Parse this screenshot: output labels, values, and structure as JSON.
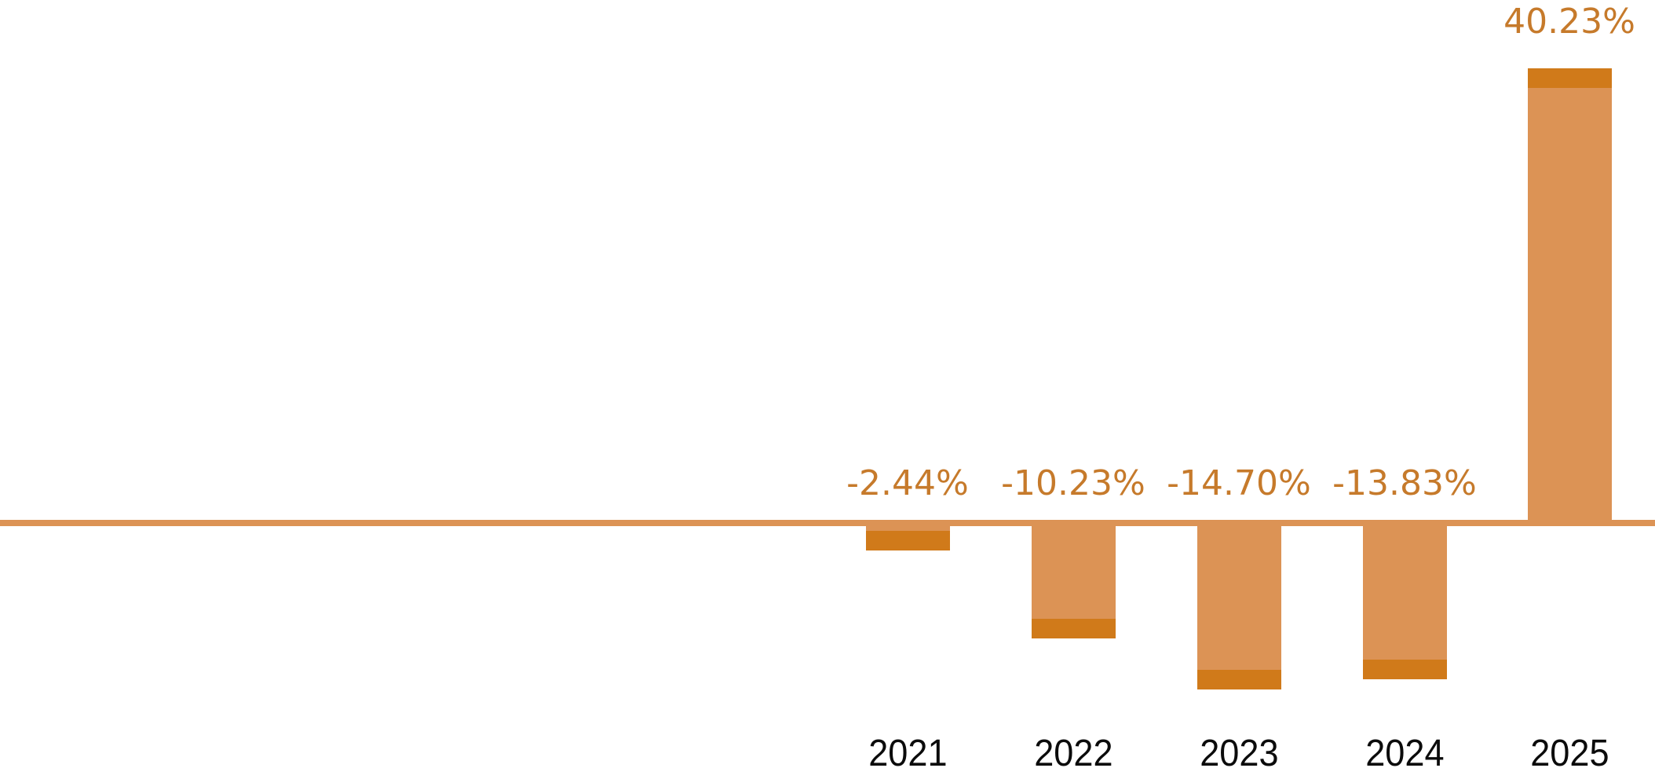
{
  "chart_data": {
    "type": "bar",
    "categories": [
      "2021",
      "2022",
      "2023",
      "2024",
      "2025"
    ],
    "values": [
      -2.44,
      -10.23,
      -14.7,
      -13.83,
      40.23
    ],
    "value_labels": [
      "-2.44%",
      "-10.23%",
      "-14.70%",
      "-13.83%",
      "40.23%"
    ],
    "series_name": "annual-change-percent",
    "title": "",
    "xlabel": "",
    "ylabel": "",
    "ylim": [
      -16,
      42
    ],
    "grid": false,
    "legend": false,
    "value_label_position": "outside-end",
    "baseline_value": 0,
    "baseline_full_width": true,
    "bars_aligned": "right-half-of-canvas",
    "colors": {
      "bar_fill": "#DC9355",
      "bar_cap": "#D07A1A",
      "baseline": "#DC9355",
      "value_label_text": "#C67A2B",
      "category_label_text": "#0B0B0B",
      "background": "#FFFFFF"
    }
  }
}
